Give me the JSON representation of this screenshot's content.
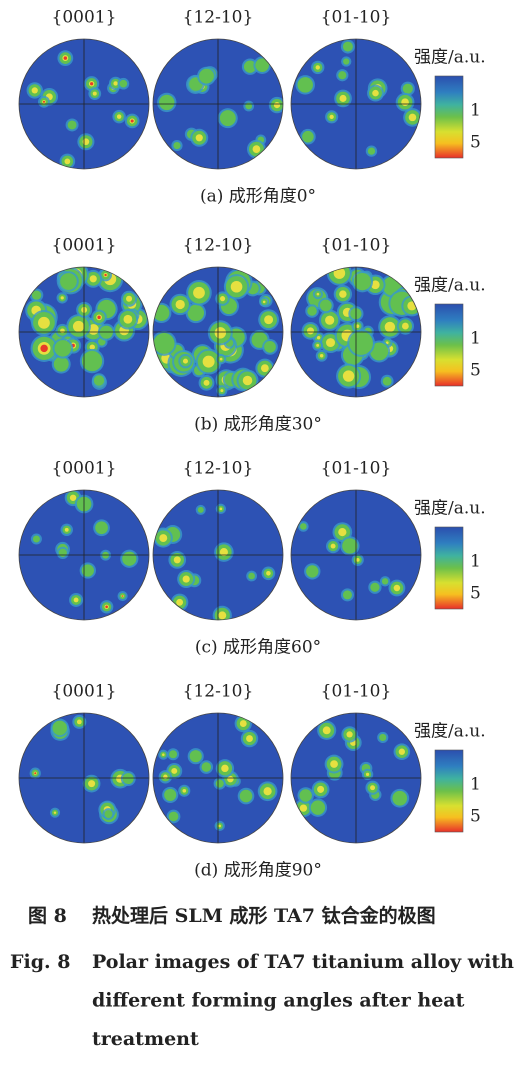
{
  "panels": [
    {
      "pole_labels": [
        "{0001}",
        "{12-10}",
        "{01-10}"
      ],
      "colorbar_label": "强度/a.u.",
      "colorbar_ticks": [
        "1",
        "5"
      ],
      "caption": "(a) 成形角度0°"
    },
    {
      "pole_labels": [
        "{0001}",
        "{12-10}",
        "{01-10}"
      ],
      "colorbar_label": "强度/a.u.",
      "colorbar_ticks": [
        "1",
        "5"
      ],
      "caption": "(b) 成形角度30°"
    },
    {
      "pole_labels": [
        "{0001}",
        "{12-10}",
        "{01-10}"
      ],
      "colorbar_label": "强度/a.u.",
      "colorbar_ticks": [
        "1",
        "5"
      ],
      "caption": "(c) 成形角度60°"
    },
    {
      "pole_labels": [
        "{0001}",
        "{12-10}",
        "{01-10}"
      ],
      "colorbar_label": "强度/a.u.",
      "colorbar_ticks": [
        "1",
        "5"
      ],
      "caption": "(d) 成形角度90°"
    }
  ],
  "figure_caption": {
    "cn_number": "图 8",
    "cn_title": "热处理后 SLM 成形 TA7 钛合金的极图",
    "en_number": "Fig. 8",
    "en_title_lines": [
      "Polar images of TA7 titanium alloy with",
      "different forming angles after heat",
      "treatment"
    ]
  }
}
